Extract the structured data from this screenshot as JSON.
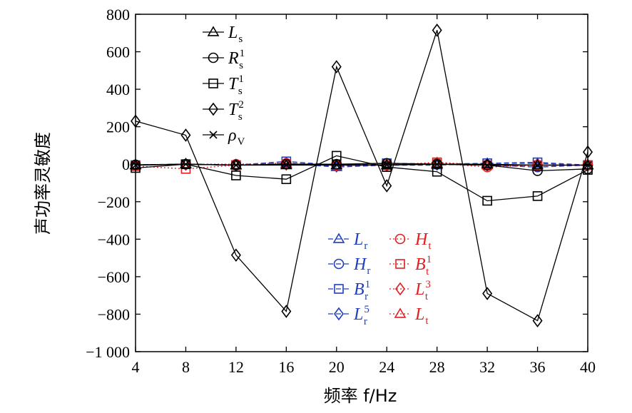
{
  "chart_data": {
    "type": "line",
    "title": "",
    "xlabel": "频率 f/Hz",
    "ylabel": "声功率灵敏度",
    "x": [
      4,
      8,
      12,
      16,
      20,
      24,
      28,
      32,
      36,
      40
    ],
    "x_ticks": [
      "4",
      "8",
      "12",
      "16",
      "20",
      "24",
      "28",
      "32",
      "36",
      "40"
    ],
    "xlim": [
      4,
      40
    ],
    "ylim": [
      -1000,
      800
    ],
    "y_ticks": [
      {
        "value": 800,
        "label": "800"
      },
      {
        "value": 600,
        "label": "600"
      },
      {
        "value": 400,
        "label": "400"
      },
      {
        "value": 200,
        "label": "200"
      },
      {
        "value": 0,
        "label": "0"
      },
      {
        "value": -200,
        "label": "−200"
      },
      {
        "value": -400,
        "label": "−400"
      },
      {
        "value": -600,
        "label": "−600"
      },
      {
        "value": -800,
        "label": "−800"
      },
      {
        "value": -1000,
        "label": "−1 000"
      }
    ],
    "grid": false,
    "legend_placement": [
      "top-left",
      "bottom-center"
    ],
    "series": [
      {
        "name": "Ls",
        "main": "L",
        "sub": "s",
        "sup": "",
        "marker": "triangle",
        "color": "#000000",
        "dash": "solid",
        "values": [
          -5,
          0,
          -5,
          -5,
          -5,
          -5,
          0,
          0,
          -5,
          -5
        ]
      },
      {
        "name": "Rs1",
        "main": "R",
        "sub": "s",
        "sup": "1",
        "marker": "circle",
        "color": "#000000",
        "dash": "solid",
        "values": [
          -3,
          0,
          -5,
          0,
          0,
          5,
          0,
          -5,
          -35,
          -25
        ]
      },
      {
        "name": "Ts1",
        "main": "T",
        "sub": "s",
        "sup": "1",
        "marker": "square",
        "color": "#000000",
        "dash": "solid",
        "values": [
          -20,
          0,
          -60,
          -80,
          45,
          -15,
          -40,
          -195,
          -170,
          -30
        ]
      },
      {
        "name": "Ts2",
        "main": "T",
        "sub": "s",
        "sup": "2",
        "marker": "diamond",
        "color": "#000000",
        "dash": "solid",
        "values": [
          230,
          155,
          -485,
          -785,
          520,
          -115,
          715,
          -690,
          -835,
          65
        ]
      },
      {
        "name": "ρV",
        "main": "ρ",
        "sub": "V",
        "sup": "",
        "marker": "x",
        "color": "#000000",
        "dash": "solid",
        "values": [
          -5,
          0,
          -5,
          -3,
          -3,
          -3,
          0,
          -5,
          -5,
          -5
        ]
      },
      {
        "name": "Lr",
        "main": "L",
        "sub": "r",
        "sup": "",
        "marker": "triangle",
        "color": "#1f3fbf",
        "dash": "dash",
        "values": [
          -5,
          0,
          -5,
          5,
          -15,
          -5,
          -5,
          5,
          5,
          -5
        ]
      },
      {
        "name": "Hr",
        "main": "H",
        "sub": "r",
        "sup": "",
        "marker": "circle",
        "color": "#1f3fbf",
        "dash": "dash",
        "values": [
          -3,
          0,
          -3,
          5,
          -5,
          5,
          0,
          -5,
          -15,
          -5
        ]
      },
      {
        "name": "Br1",
        "main": "B",
        "sub": "r",
        "sup": "1",
        "marker": "square",
        "color": "#1f3fbf",
        "dash": "dash",
        "values": [
          -5,
          0,
          -5,
          15,
          -5,
          5,
          0,
          5,
          10,
          -5
        ]
      },
      {
        "name": "Lr5",
        "main": "L",
        "sub": "r",
        "sup": "5",
        "marker": "diamond",
        "color": "#1f3fbf",
        "dash": "dash",
        "values": [
          -5,
          0,
          -5,
          5,
          -10,
          -5,
          0,
          -5,
          -5,
          -5
        ]
      },
      {
        "name": "Ht",
        "main": "H",
        "sub": "t",
        "sup": "",
        "marker": "circle",
        "color": "#e02020",
        "dash": "dot",
        "values": [
          -5,
          0,
          0,
          5,
          -5,
          -5,
          5,
          -15,
          -5,
          -5
        ]
      },
      {
        "name": "Bt1",
        "main": "B",
        "sub": "t",
        "sup": "1",
        "marker": "square",
        "color": "#e02020",
        "dash": "dot",
        "values": [
          -10,
          -25,
          -5,
          0,
          -5,
          -5,
          10,
          -5,
          -5,
          -5
        ]
      },
      {
        "name": "Lt3",
        "main": "L",
        "sub": "t",
        "sup": "3",
        "marker": "diamond",
        "color": "#e02020",
        "dash": "dot",
        "values": [
          -5,
          0,
          -5,
          0,
          -5,
          -5,
          5,
          -5,
          -5,
          -5
        ]
      },
      {
        "name": "Lt",
        "main": "L",
        "sub": "t",
        "sup": "",
        "marker": "triangle",
        "color": "#e02020",
        "dash": "dot",
        "values": [
          -5,
          0,
          -5,
          0,
          -5,
          -5,
          5,
          -5,
          -5,
          -5
        ]
      }
    ]
  }
}
